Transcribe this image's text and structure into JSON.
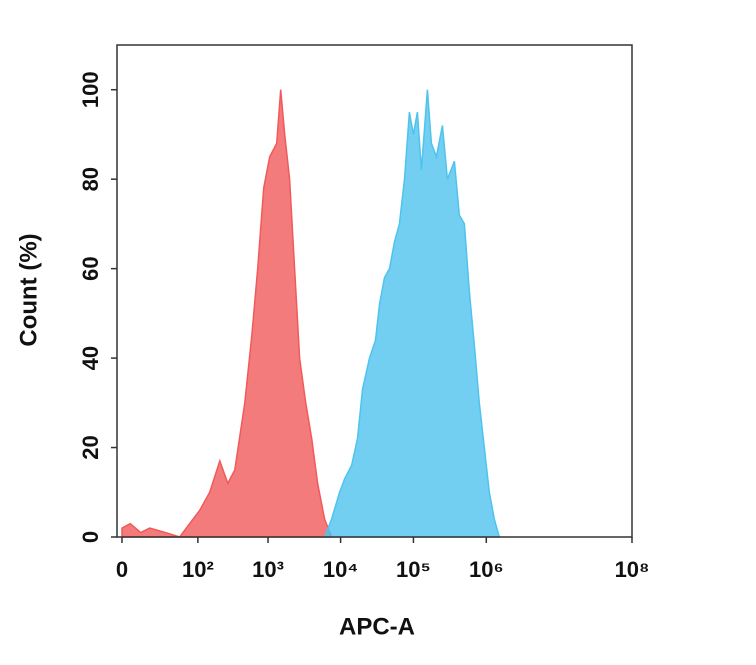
{
  "chart_data": {
    "type": "area",
    "xlabel": "APC-A",
    "ylabel": "Count (%)",
    "xscale": "symlog",
    "xlim": [
      0,
      100000000
    ],
    "xticks": [
      0,
      {
        "value": 100,
        "label": "10²"
      },
      {
        "value": 1000,
        "label": "10³"
      },
      {
        "value": 10000,
        "label": "10⁴"
      },
      {
        "value": 100000,
        "label": "10⁵"
      },
      {
        "value": 1000000,
        "label": "10⁶"
      },
      {
        "value": 100000000,
        "label": "10⁸"
      }
    ],
    "ylim": [
      0,
      110
    ],
    "yticks": [
      0,
      20,
      40,
      60,
      80,
      100
    ],
    "grid": false,
    "series": [
      {
        "color": "#f15a5a",
        "x": [
          0,
          3,
          8,
          14,
          29,
          52,
          75,
          107,
          150,
          210,
          273,
          343,
          474,
          594,
          719,
          871,
          1055,
          1318,
          1497,
          1700,
          1990,
          2330,
          2730,
          3310,
          4000,
          4830,
          6030,
          7520
        ],
        "values": [
          2,
          3,
          1,
          2,
          1,
          0,
          3,
          6,
          10,
          17,
          12,
          15,
          30,
          45,
          60,
          78,
          85,
          88,
          100,
          90,
          80,
          60,
          40,
          30,
          22,
          12,
          4,
          0
        ]
      },
      {
        "color": "#4fc3ee",
        "x": [
          6030,
          7520,
          9680,
          11340,
          14150,
          17090,
          20000,
          24940,
          30120,
          34190,
          40080,
          46890,
          54940,
          64260,
          75330,
          88090,
          100000,
          113500,
          128800,
          155600,
          176600,
          206500,
          249500,
          292400,
          364800,
          426600,
          500000,
          584800,
          685500,
          801700,
          939700,
          1099000,
          1288000,
          1507000
        ],
        "values": [
          0,
          4,
          10,
          13,
          16,
          22,
          33,
          40,
          44,
          52,
          58,
          60,
          66,
          70,
          80,
          95,
          90,
          95,
          82,
          100,
          88,
          85,
          92,
          80,
          84,
          72,
          70,
          55,
          43,
          30,
          20,
          10,
          4,
          0
        ]
      }
    ]
  }
}
